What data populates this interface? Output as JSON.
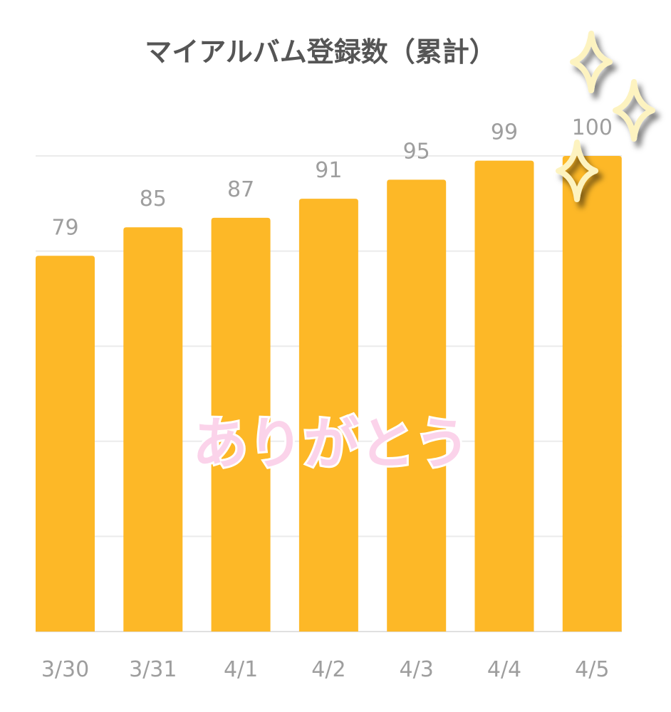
{
  "chart_data": {
    "type": "bar",
    "title": "マイアルバム登録数（累計）",
    "categories": [
      "3/30",
      "3/31",
      "4/1",
      "4/2",
      "4/3",
      "4/4",
      "4/5"
    ],
    "values": [
      79,
      85,
      87,
      91,
      95,
      99,
      100
    ],
    "data_labels": [
      "79",
      "85",
      "87",
      "91",
      "95",
      "99",
      "100"
    ],
    "ylim": [
      0,
      100
    ],
    "gridlines": [
      0,
      20,
      40,
      60,
      80,
      100
    ],
    "grid": true,
    "y_tick_labels_shown": false,
    "legend": "none",
    "bar_color": "#FDB827",
    "overlay_text": "ありがとう",
    "decoration": "sparkle-icons"
  }
}
